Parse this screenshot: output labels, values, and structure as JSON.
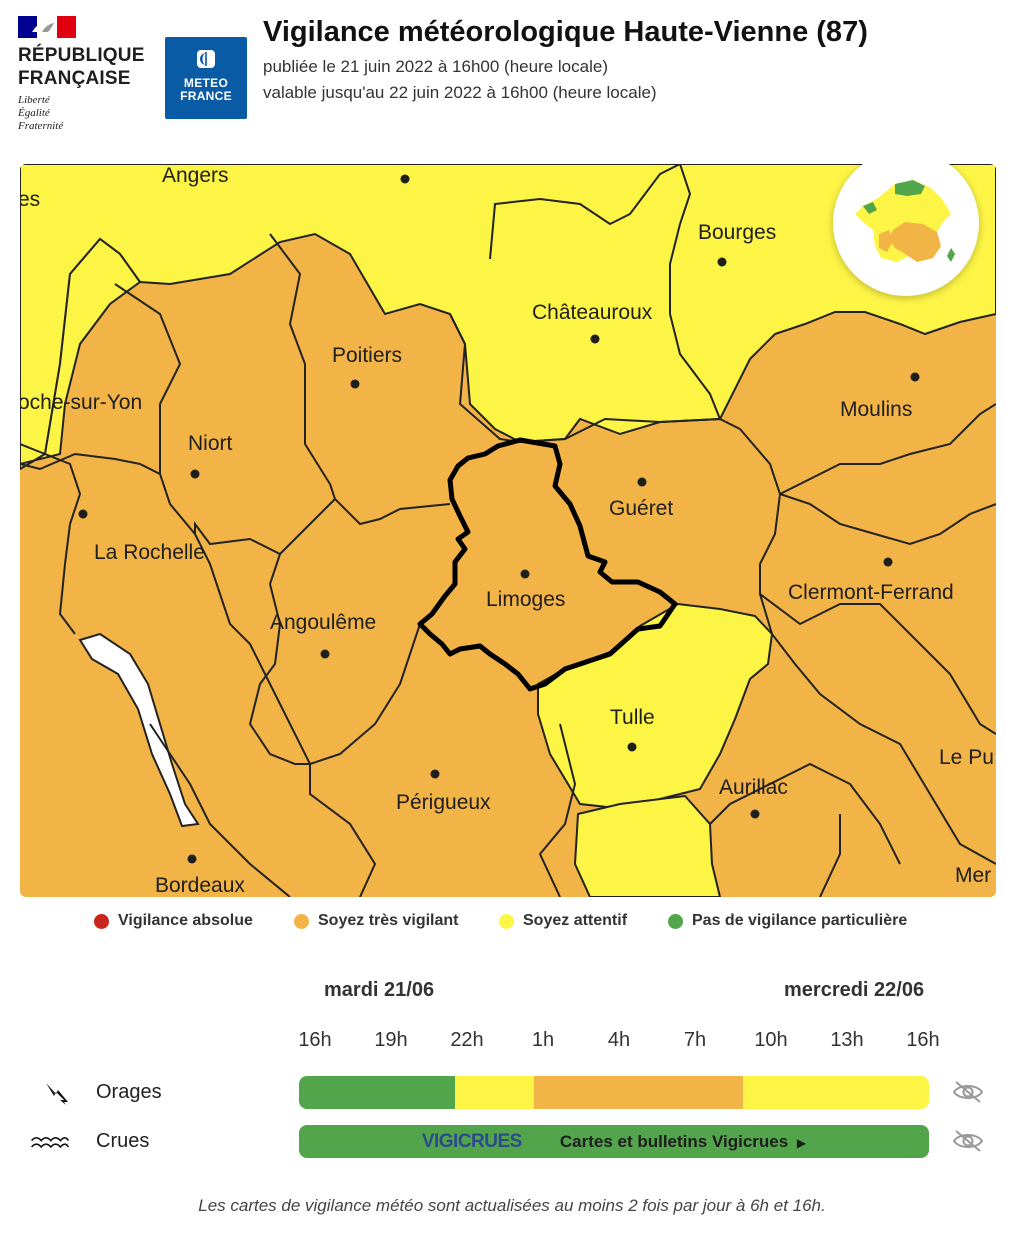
{
  "header": {
    "republic_lines": [
      "RÉPUBLIQUE",
      "FRANÇAISE"
    ],
    "motto_lines": [
      "Liberté",
      "Égalité",
      "Fraternité"
    ],
    "meteo_lines": [
      "METEO",
      "FRANCE"
    ],
    "title": "Vigilance météorologique Haute-Vienne (87)",
    "published": "publiée le 21 juin 2022 à 16h00 (heure locale)",
    "valid_until": "valable jusqu'au 22 juin 2022 à 16h00 (heure locale)"
  },
  "map": {
    "cities": [
      "Angers",
      "es",
      "Bourges",
      "Châteauroux",
      "Poitiers",
      "oche-sur-Yon",
      "Moulins",
      "Niort",
      "Guéret",
      "La Rochelle",
      "Clermont-Ferrand",
      "Limoges",
      "Angoulême",
      "Tulle",
      "Le Pu",
      "Aurillac",
      "Périgueux",
      "Bordeaux",
      "Mer"
    ],
    "selected_department": "Limoges",
    "colors": {
      "orange": "#f3b447",
      "yellow": "#fdf545",
      "green": "#52a54a",
      "red": "#c8261c",
      "water": "#ffffff"
    }
  },
  "legend": [
    {
      "label": "Vigilance absolue",
      "color": "#c8261c"
    },
    {
      "label": "Soyez très vigilant",
      "color": "#f3b447"
    },
    {
      "label": "Soyez attentif",
      "color": "#fdf545"
    },
    {
      "label": "Pas de vigilance particulière",
      "color": "#52a54a"
    }
  ],
  "timeline": {
    "days": [
      "mardi 21/06",
      "mercredi 22/06"
    ],
    "hours": [
      "16h",
      "19h",
      "22h",
      "1h",
      "4h",
      "7h",
      "10h",
      "13h",
      "16h"
    ],
    "rows": [
      {
        "label": "Orages",
        "icon": "lightning-icon",
        "segments": [
          {
            "from_hour_index": 0,
            "to_hour_index": 2.05,
            "color": "#52a54a"
          },
          {
            "from_hour_index": 2.05,
            "to_hour_index": 3.1,
            "color": "#fdf545"
          },
          {
            "from_hour_index": 3.1,
            "to_hour_index": 5.85,
            "color": "#f3b447"
          },
          {
            "from_hour_index": 5.85,
            "to_hour_index": 8.3,
            "color": "#fdf545"
          }
        ]
      },
      {
        "label": "Crues",
        "icon": "waves-icon",
        "vigicrues_logo": "VIGICRUES",
        "link_label": "Cartes et bulletins Vigicrues",
        "color": "#52a54a"
      }
    ]
  },
  "footnote": "Les cartes de vigilance météo sont actualisées au moins 2 fois par jour à 6h et 16h."
}
